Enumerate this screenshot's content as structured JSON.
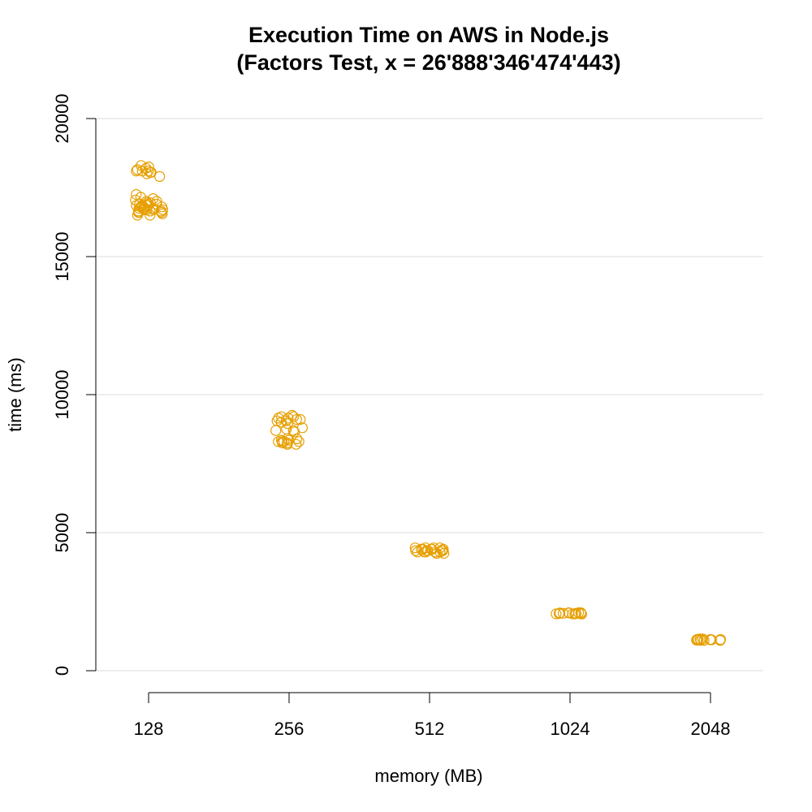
{
  "chart_data": {
    "type": "scatter",
    "title": "Execution Time on AWS in Node.js",
    "subtitle": "(Factors Test, x = 26'888'346'474'443)",
    "xlabel": "memory (MB)",
    "ylabel": "time (ms)",
    "categories": [
      "128",
      "256",
      "512",
      "1024",
      "2048"
    ],
    "ylim": [
      0,
      20000
    ],
    "yticks": [
      "0",
      "5000",
      "10000",
      "15000",
      "20000"
    ],
    "grid": "horizontal",
    "marker_color": "#E69F00",
    "series": [
      {
        "category": "128",
        "values": [
          18100,
          18050,
          18150,
          18300,
          18000,
          18250,
          18100,
          17900,
          18050,
          18200,
          18100,
          17000,
          17100,
          17250,
          16900,
          16800,
          16700,
          16650,
          16950,
          16850,
          16750,
          17050,
          16600,
          16550,
          16500,
          16700,
          16800,
          16900,
          17000,
          16650,
          16750,
          16850,
          16600,
          16700,
          16950,
          17150,
          16500,
          16800,
          16600,
          16900,
          16700,
          16750,
          16850,
          16650
        ]
      },
      {
        "category": "256",
        "values": [
          9200,
          9100,
          9150,
          9000,
          9250,
          9050,
          9100,
          9200,
          9150,
          9000,
          8950,
          9050,
          8700,
          8750,
          8650,
          8700,
          8800,
          8300,
          8250,
          8350,
          8200,
          8300,
          8400,
          8250,
          8300,
          8350,
          8200,
          8300,
          8250,
          8400
        ]
      },
      {
        "category": "512",
        "values": [
          4450,
          4400,
          4350,
          4300,
          4250,
          4450,
          4400,
          4350,
          4300,
          4450,
          4400,
          4350,
          4300,
          4250,
          4400,
          4350,
          4450,
          4300,
          4400,
          4350,
          4300,
          4250
        ]
      },
      {
        "category": "1024",
        "values": [
          2100,
          2080,
          2060,
          2090,
          2070,
          2100,
          2050,
          2080,
          2060,
          2090,
          2070,
          2080,
          2060,
          2100
        ]
      },
      {
        "category": "2048",
        "values": [
          1150,
          1120,
          1100,
          1130,
          1140,
          1110,
          1120,
          1100,
          1130,
          1150,
          1120,
          1110,
          1100,
          1130
        ]
      }
    ]
  }
}
